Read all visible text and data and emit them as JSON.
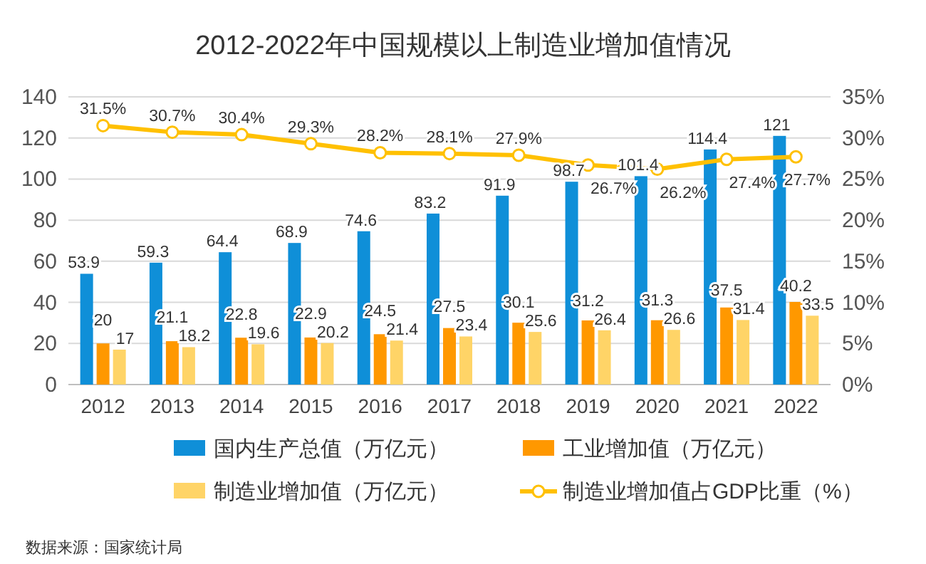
{
  "chart_data": {
    "type": "bar",
    "title": "2012-2022年中国规模以上制造业增加值情况",
    "categories": [
      "2012",
      "2013",
      "2014",
      "2015",
      "2016",
      "2017",
      "2018",
      "2019",
      "2020",
      "2021",
      "2022"
    ],
    "series": [
      {
        "name": "国内生产总值（万亿元）",
        "color": "#0f8fd8",
        "values": [
          53.9,
          59.3,
          64.4,
          68.9,
          74.6,
          83.2,
          91.9,
          98.7,
          101.4,
          114.4,
          121
        ]
      },
      {
        "name": "工业增加值（万亿元）",
        "color": "#ff9800",
        "values": [
          20,
          21.1,
          22.8,
          22.9,
          24.5,
          27.5,
          30.1,
          31.2,
          31.3,
          37.5,
          40.2
        ]
      },
      {
        "name": "制造业增加值（万亿元）",
        "color": "#ffd467",
        "values": [
          17,
          18.2,
          19.6,
          20.2,
          21.4,
          23.4,
          25.6,
          26.4,
          26.6,
          31.4,
          33.5
        ]
      },
      {
        "name": "制造业增加值占GDP比重（%）",
        "color": "#ffc000",
        "type": "line",
        "axis": "y2",
        "marker": "circle",
        "values": [
          31.5,
          30.7,
          30.4,
          29.3,
          28.2,
          28.1,
          27.9,
          26.7,
          26.2,
          27.4,
          27.7
        ],
        "value_labels": [
          "31.5%",
          "30.7%",
          "30.4%",
          "29.3%",
          "28.2%",
          "28.1%",
          "27.9%",
          "26.7%",
          "26.2%",
          "27.4%",
          "27.7%"
        ]
      }
    ],
    "ylim": [
      0,
      140
    ],
    "yticks": [
      0,
      20,
      40,
      60,
      80,
      100,
      120,
      140
    ],
    "y2lim": [
      0,
      35
    ],
    "y2ticks": [
      {
        "value": 0,
        "label": "0%"
      },
      {
        "value": 5,
        "label": "5%"
      },
      {
        "value": 10,
        "label": "10%"
      },
      {
        "value": 15,
        "label": "15%"
      },
      {
        "value": 20,
        "label": "20%"
      },
      {
        "value": 25,
        "label": "25%"
      },
      {
        "value": 30,
        "label": "30%"
      },
      {
        "value": 35,
        "label": "35%"
      }
    ],
    "grid": "y",
    "legend": "bottom",
    "data_labels": true,
    "annotations": [
      "数据来源：国家统计局"
    ]
  }
}
